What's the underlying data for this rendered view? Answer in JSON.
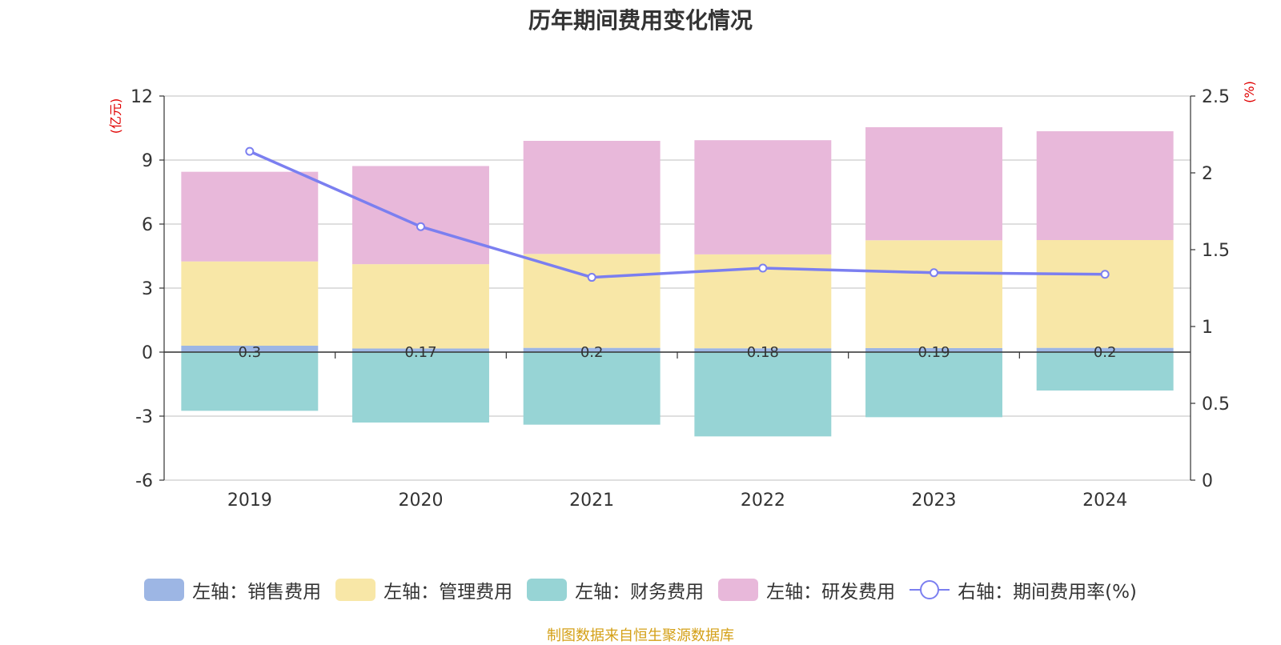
{
  "chart_data": {
    "type": "bar",
    "title": "历年期间费用变化情况",
    "categories": [
      "2019",
      "2020",
      "2021",
      "2022",
      "2023",
      "2024"
    ],
    "left_axis": {
      "unit": "(亿元)",
      "ylim": [
        -6,
        12
      ],
      "ticks": [
        12,
        9,
        6,
        3,
        0,
        -3,
        -6
      ]
    },
    "right_axis": {
      "unit": "(%)",
      "ylim": [
        0,
        2.5
      ],
      "ticks": [
        "2.5",
        "2",
        "1.5",
        "1",
        "0.5",
        "0"
      ]
    },
    "series": [
      {
        "name": "左轴：销售费用",
        "axis": "left",
        "stack": "pos",
        "color": "#9db6e4",
        "values": [
          0.3,
          0.17,
          0.2,
          0.18,
          0.19,
          0.2
        ],
        "labels": [
          "0.3",
          "0.17",
          "0.2",
          "0.18",
          "0.19",
          "0.2"
        ]
      },
      {
        "name": "左轴：管理费用",
        "axis": "left",
        "stack": "pos",
        "color": "#f8e7a7",
        "values": [
          3.95,
          3.95,
          4.4,
          4.4,
          5.05,
          5.05
        ]
      },
      {
        "name": "左轴：财务费用",
        "axis": "left",
        "stack": "neg",
        "color": "#97d4d5",
        "values": [
          -2.75,
          -3.3,
          -3.4,
          -3.95,
          -3.05,
          -1.8
        ]
      },
      {
        "name": "左轴：研发费用",
        "axis": "left",
        "stack": "pos",
        "color": "#e8b8da",
        "values": [
          4.2,
          4.6,
          5.3,
          5.35,
          5.3,
          5.1
        ]
      },
      {
        "name": "右轴：期间费用率(%)",
        "axis": "right",
        "type": "line",
        "color": "#7b7ff0",
        "values": [
          2.14,
          1.65,
          1.32,
          1.38,
          1.35,
          1.34
        ]
      }
    ],
    "legend_position": "bottom"
  },
  "source": "制图数据来自恒生聚源数据库"
}
